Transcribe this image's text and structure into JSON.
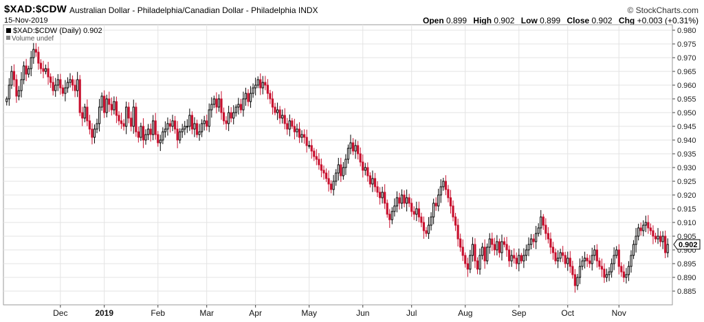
{
  "header": {
    "symbol": "$XAD:$CDW",
    "description": "Australian Dollar - Philadelphia/Canadian Dollar - Philadelphia INDX",
    "brand": "© StockCharts.com",
    "date": "15-Nov-2019",
    "ohlc": {
      "open_label": "Open",
      "open": "0.899",
      "high_label": "High",
      "high": "0.902",
      "low_label": "Low",
      "low": "0.899",
      "close_label": "Close",
      "close": "0.902",
      "chg_label": "Chg",
      "chg": "+0.003 (+0.31%)"
    }
  },
  "legend": {
    "price": "$XAD:$CDW (Daily) 0.902",
    "volume": "Volume undef"
  },
  "last_price_label": "0.902",
  "colors": {
    "up": "#000000",
    "down": "#c8102e",
    "grid": "#e3e3e3",
    "axis": "#444444"
  },
  "chart_data": {
    "type": "candlestick",
    "ylim": [
      0.88,
      0.982
    ],
    "y_ticks": [
      "0.885",
      "0.890",
      "0.895",
      "0.900",
      "0.905",
      "0.910",
      "0.915",
      "0.920",
      "0.925",
      "0.930",
      "0.935",
      "0.940",
      "0.945",
      "0.950",
      "0.955",
      "0.960",
      "0.965",
      "0.970",
      "0.975",
      "0.980"
    ],
    "x_labels": [
      "Dec",
      "2019",
      "Feb",
      "Mar",
      "Apr",
      "May",
      "Jun",
      "Jul",
      "Aug",
      "Sep",
      "Oct",
      "Nov"
    ],
    "x_label_index": [
      22,
      40,
      62,
      82,
      102,
      124,
      146,
      166,
      188,
      210,
      230,
      251
    ],
    "closes": [
      0.955,
      0.96,
      0.965,
      0.962,
      0.956,
      0.958,
      0.962,
      0.967,
      0.964,
      0.966,
      0.97,
      0.973,
      0.972,
      0.968,
      0.966,
      0.965,
      0.966,
      0.963,
      0.961,
      0.958,
      0.96,
      0.962,
      0.959,
      0.957,
      0.959,
      0.961,
      0.962,
      0.96,
      0.958,
      0.962,
      0.95,
      0.948,
      0.952,
      0.947,
      0.944,
      0.941,
      0.944,
      0.946,
      0.952,
      0.956,
      0.95,
      0.955,
      0.953,
      0.951,
      0.954,
      0.949,
      0.947,
      0.946,
      0.945,
      0.952,
      0.948,
      0.945,
      0.952,
      0.943,
      0.941,
      0.945,
      0.94,
      0.942,
      0.944,
      0.942,
      0.947,
      0.942,
      0.939,
      0.94,
      0.943,
      0.944,
      0.946,
      0.945,
      0.947,
      0.944,
      0.94,
      0.943,
      0.944,
      0.945,
      0.945,
      0.949,
      0.944,
      0.946,
      0.942,
      0.943,
      0.946,
      0.947,
      0.945,
      0.951,
      0.953,
      0.955,
      0.952,
      0.955,
      0.95,
      0.947,
      0.946,
      0.95,
      0.948,
      0.95,
      0.952,
      0.953,
      0.951,
      0.955,
      0.957,
      0.954,
      0.957,
      0.959,
      0.96,
      0.962,
      0.959,
      0.961,
      0.96,
      0.957,
      0.955,
      0.952,
      0.95,
      0.951,
      0.948,
      0.949,
      0.946,
      0.944,
      0.947,
      0.945,
      0.943,
      0.944,
      0.941,
      0.942,
      0.941,
      0.938,
      0.938,
      0.936,
      0.934,
      0.933,
      0.931,
      0.929,
      0.928,
      0.926,
      0.924,
      0.922,
      0.925,
      0.928,
      0.931,
      0.927,
      0.93,
      0.933,
      0.937,
      0.939,
      0.936,
      0.938,
      0.935,
      0.932,
      0.929,
      0.93,
      0.927,
      0.924,
      0.926,
      0.923,
      0.921,
      0.919,
      0.921,
      0.917,
      0.913,
      0.911,
      0.914,
      0.916,
      0.919,
      0.917,
      0.92,
      0.917,
      0.919,
      0.917,
      0.914,
      0.913,
      0.915,
      0.912,
      0.91,
      0.907,
      0.906,
      0.909,
      0.912,
      0.917,
      0.916,
      0.92,
      0.923,
      0.925,
      0.922,
      0.919,
      0.916,
      0.912,
      0.909,
      0.904,
      0.901,
      0.898,
      0.895,
      0.893,
      0.898,
      0.902,
      0.896,
      0.893,
      0.898,
      0.901,
      0.896,
      0.901,
      0.904,
      0.902,
      0.9,
      0.903,
      0.899,
      0.903,
      0.902,
      0.9,
      0.896,
      0.898,
      0.897,
      0.895,
      0.898,
      0.896,
      0.898,
      0.9,
      0.902,
      0.904,
      0.903,
      0.906,
      0.908,
      0.912,
      0.909,
      0.906,
      0.904,
      0.901,
      0.899,
      0.896,
      0.897,
      0.899,
      0.898,
      0.895,
      0.897,
      0.894,
      0.891,
      0.887,
      0.89,
      0.894,
      0.896,
      0.897,
      0.896,
      0.895,
      0.898,
      0.9,
      0.896,
      0.894,
      0.893,
      0.89,
      0.891,
      0.892,
      0.895,
      0.898,
      0.9,
      0.894,
      0.892,
      0.89,
      0.891,
      0.894,
      0.898,
      0.902,
      0.905,
      0.908,
      0.907,
      0.909,
      0.91,
      0.908,
      0.907,
      0.905,
      0.904,
      0.905,
      0.903,
      0.905,
      0.899,
      0.902
    ]
  }
}
